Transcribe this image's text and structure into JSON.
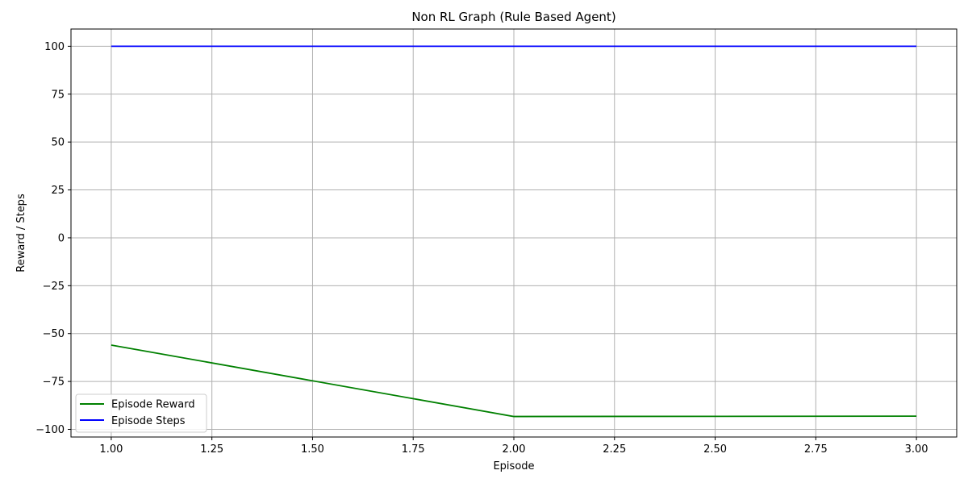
{
  "chart_data": {
    "type": "line",
    "title": "Non RL Graph (Rule Based Agent)",
    "xlabel": "Episode",
    "ylabel": "Reward / Steps",
    "x": [
      1,
      2,
      3
    ],
    "xlim": [
      0.9,
      3.1
    ],
    "ylim": [
      -104,
      109
    ],
    "xticks": [
      1.0,
      1.25,
      1.5,
      1.75,
      2.0,
      2.25,
      2.5,
      2.75,
      3.0
    ],
    "xtick_labels": [
      "1.00",
      "1.25",
      "1.50",
      "1.75",
      "2.00",
      "2.25",
      "2.50",
      "2.75",
      "3.00"
    ],
    "yticks": [
      100,
      75,
      50,
      25,
      0,
      -25,
      -50,
      -75,
      -100
    ],
    "ytick_labels": [
      "100",
      "75",
      "50",
      "25",
      "0",
      "−25",
      "−50",
      "−75",
      "−100"
    ],
    "grid": true,
    "legend_position": "lower-left",
    "series": [
      {
        "name": "Episode Reward",
        "color": "#008000",
        "values": [
          -56,
          -93.3,
          -93.1
        ]
      },
      {
        "name": "Episode Steps",
        "color": "#0000ff",
        "values": [
          100,
          100,
          100
        ]
      }
    ]
  }
}
